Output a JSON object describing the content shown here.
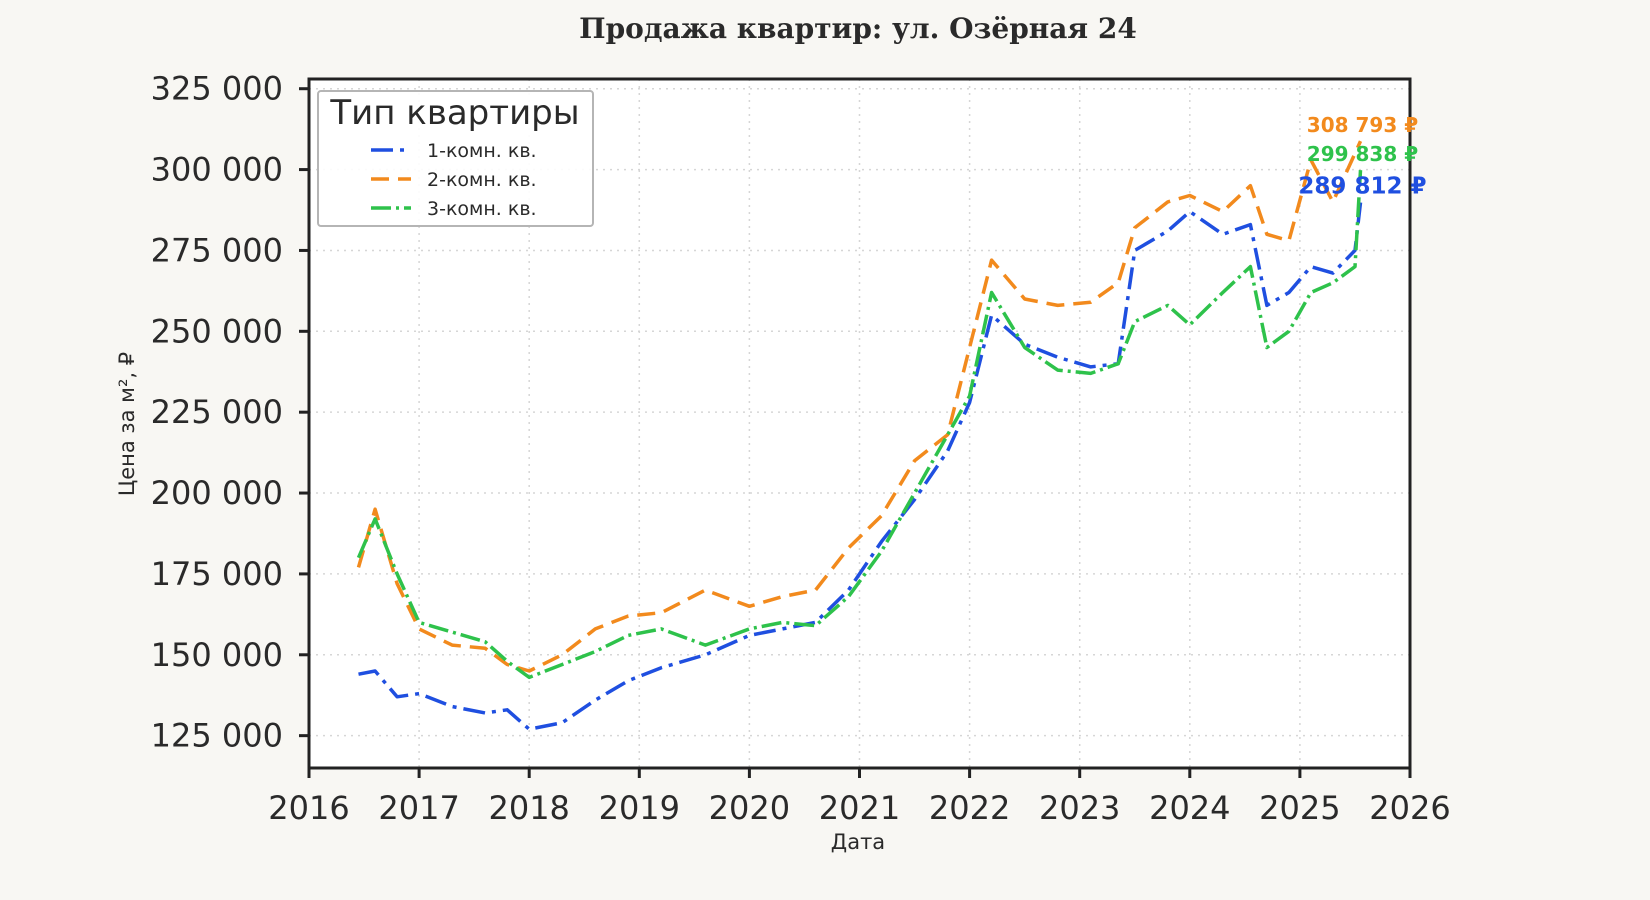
{
  "chart_data": {
    "type": "line",
    "title": "Продажа квартир: ул. Озёрная 24",
    "xlabel": "Дата",
    "ylabel": "Цена за м², ₽",
    "xlim": [
      2016,
      2026
    ],
    "ylim": [
      115000,
      328000
    ],
    "x_ticks": [
      2016,
      2017,
      2018,
      2019,
      2020,
      2021,
      2022,
      2023,
      2024,
      2025,
      2026
    ],
    "x_tick_labels": [
      "2016",
      "2017",
      "2018",
      "2019",
      "2020",
      "2021",
      "2022",
      "2023",
      "2024",
      "2025",
      "2026"
    ],
    "y_ticks": [
      125000,
      150000,
      175000,
      200000,
      225000,
      250000,
      275000,
      300000,
      325000
    ],
    "y_tick_labels": [
      "125 000",
      "150 000",
      "175 000",
      "200 000",
      "225 000",
      "250 000",
      "275 000",
      "300 000",
      "325 000"
    ],
    "grid": true,
    "legend": {
      "title": "Тип квартиры",
      "placement": "top-left"
    },
    "x": [
      2016.45,
      2016.6,
      2016.8,
      2017.0,
      2017.3,
      2017.6,
      2017.8,
      2018.0,
      2018.3,
      2018.6,
      2018.9,
      2019.2,
      2019.6,
      2020.0,
      2020.3,
      2020.6,
      2020.9,
      2021.2,
      2021.5,
      2021.8,
      2022.0,
      2022.2,
      2022.5,
      2022.8,
      2023.1,
      2023.35,
      2023.5,
      2023.8,
      2024.0,
      2024.3,
      2024.55,
      2024.7,
      2024.9,
      2025.1,
      2025.3,
      2025.5,
      2025.55
    ],
    "series": [
      {
        "name": "1-комн. кв.",
        "color": "#1f4fe0",
        "dash": "dashdot",
        "values": [
          144000,
          145000,
          137000,
          138000,
          134000,
          132000,
          133000,
          127000,
          129000,
          136000,
          142000,
          146000,
          150000,
          156000,
          158000,
          160000,
          170000,
          185000,
          198000,
          213000,
          228000,
          255000,
          246000,
          242000,
          239000,
          240000,
          275000,
          281000,
          287000,
          280000,
          283000,
          258000,
          262000,
          270000,
          268000,
          275000,
          289812
        ]
      },
      {
        "name": "2-комн. кв.",
        "color": "#f28a1d",
        "dash": "dashed",
        "values": [
          177000,
          195000,
          172000,
          158000,
          153000,
          152000,
          147000,
          145000,
          150000,
          158000,
          162000,
          163000,
          170000,
          165000,
          168000,
          170000,
          183000,
          193000,
          210000,
          218000,
          245000,
          272000,
          260000,
          258000,
          259000,
          265000,
          282000,
          290000,
          292000,
          287000,
          295000,
          280000,
          278000,
          303000,
          290000,
          305000,
          308793
        ]
      },
      {
        "name": "3-комн. кв.",
        "color": "#2ec24b",
        "dash": "dotdash",
        "values": [
          180000,
          192000,
          175000,
          160000,
          157000,
          154000,
          148000,
          143000,
          147000,
          151000,
          156000,
          158000,
          153000,
          158000,
          160000,
          159000,
          168000,
          182000,
          200000,
          218000,
          230000,
          262000,
          245000,
          238000,
          237000,
          240000,
          253000,
          258000,
          252000,
          262000,
          270000,
          245000,
          250000,
          262000,
          265000,
          270000,
          299838
        ]
      }
    ],
    "end_labels": [
      {
        "text": "308 793 ₽",
        "series": 1
      },
      {
        "text": "299 838 ₽",
        "series": 2
      },
      {
        "text": "289 812 ₽",
        "series": 0
      }
    ]
  }
}
